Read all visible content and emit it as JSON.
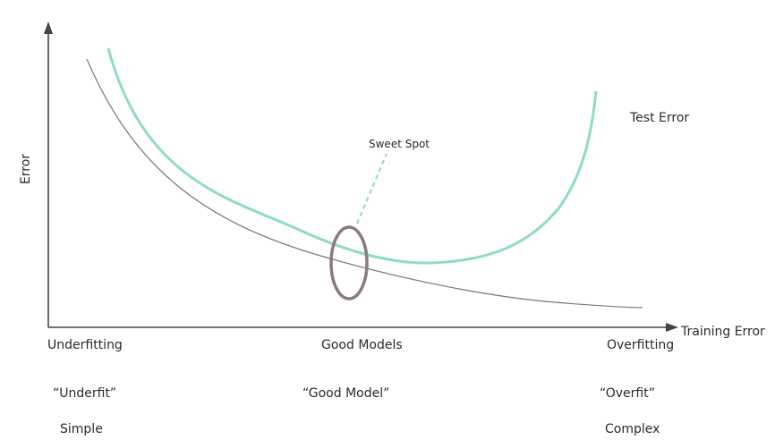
{
  "chart_data": {
    "type": "line",
    "title": "",
    "xlabel": "Training Error",
    "ylabel": "Error",
    "grid": false,
    "series": [
      {
        "name": "Test Error",
        "color": "#8fdcc0"
      },
      {
        "name": "",
        "color": "#777777"
      }
    ],
    "annotations": {
      "sweet_spot": "Sweet Spot",
      "sweet_spot_color": "#8fdcc0",
      "ellipse_color": "#8a7a80"
    },
    "regions": [
      {
        "label": "Underfitting",
        "quote": "“Underfit”",
        "complexity": "Simple"
      },
      {
        "label": "Good Models",
        "quote": "“Good Model”",
        "complexity": ""
      },
      {
        "label": "Overfitting",
        "quote": "“Overfit”",
        "complexity": "Complex"
      }
    ]
  }
}
